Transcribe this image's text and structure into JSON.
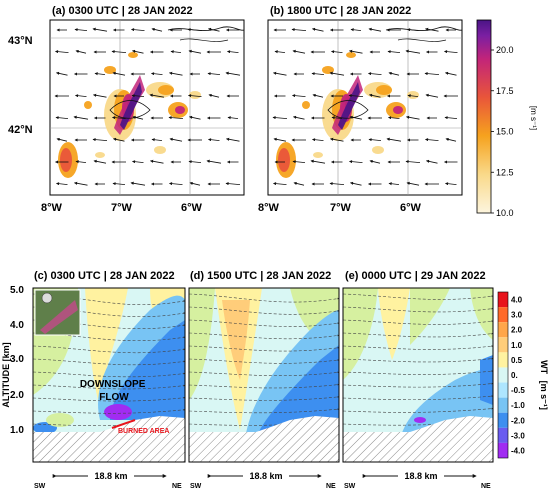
{
  "top_panels": [
    {
      "title": "(a) 0300 UTC | 28 JAN 2022"
    },
    {
      "title": "(b) 1800 UTC | 28 JAN 2022"
    }
  ],
  "map_axes": {
    "lat_ticks": [
      "43°N",
      "42°N"
    ],
    "lon_ticks": [
      "8°W",
      "7°W",
      "6°W"
    ]
  },
  "top_colorbar": {
    "unit": "[m s⁻¹]",
    "ticks": [
      "20.0",
      "17.5",
      "15.0",
      "12.5",
      "10.0"
    ],
    "colors": [
      "#4a1486",
      "#7a1fa2",
      "#c2247a",
      "#e9553a",
      "#f6a21e",
      "#f9d98a",
      "#fdf5de"
    ]
  },
  "bottom_panels": [
    {
      "title": "(c) 0300 UTC | 28 JAN 2022",
      "annotation": "DOWNSLOPE FLOW",
      "burned_label": "BURNED AREA"
    },
    {
      "title": "(d) 1500 UTC | 28 JAN 2022"
    },
    {
      "title": "(e) 0000 UTC | 29 JAN 2022"
    }
  ],
  "cross_section": {
    "y_label": "ALTITUDE [km]",
    "y_ticks": [
      "5.0",
      "4.0",
      "3.0",
      "2.0",
      "1.0"
    ],
    "distance_label": "18.8 km",
    "sw_label": "SW",
    "ne_label": "NE"
  },
  "bottom_colorbar": {
    "label": "WT",
    "unit": "[m s⁻¹]",
    "ticks": [
      "4.0",
      "3.0",
      "2.0",
      "1.0",
      "0.5",
      "0.",
      "-0.5",
      "-1.0",
      "-2.0",
      "-3.0",
      "-4.0"
    ],
    "colors": [
      "#e8141c",
      "#ff6a2a",
      "#ffa64a",
      "#ffcd7a",
      "#fff2a0",
      "#d9f7f4",
      "#aee6ff",
      "#78c4f4",
      "#3d8ff0",
      "#6a5cf0",
      "#a12cf2"
    ]
  }
}
